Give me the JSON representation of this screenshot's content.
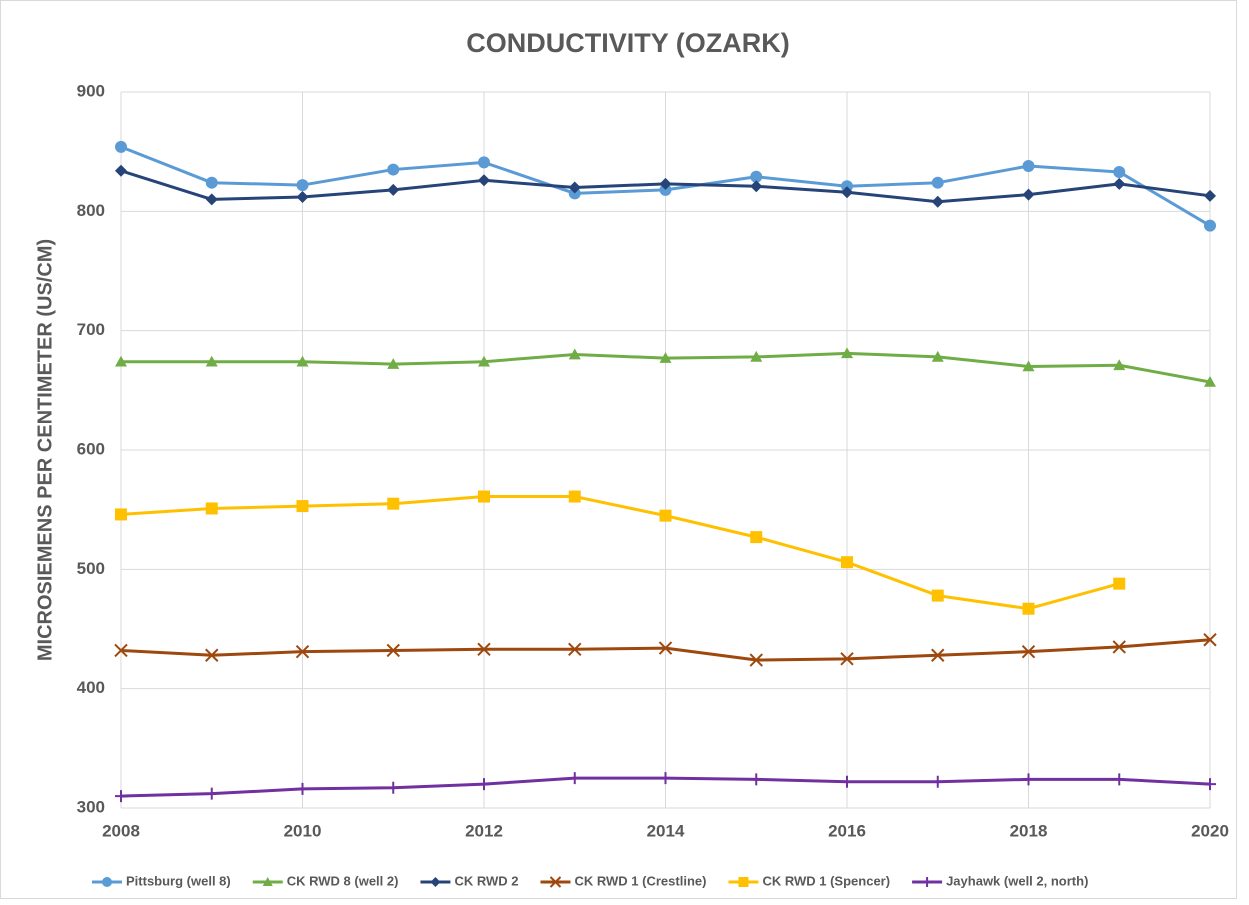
{
  "chart_data": {
    "type": "line",
    "title": "CONDUCTIVITY (OZARK)",
    "y_label": "MICROSIEMENS PER CENTIMETER (US/CM)",
    "x": [
      2008,
      2009,
      2010,
      2011,
      2012,
      2013,
      2014,
      2015,
      2016,
      2017,
      2018,
      2019,
      2020
    ],
    "xlim": [
      2008,
      2020
    ],
    "xticks": [
      2008,
      2010,
      2012,
      2014,
      2016,
      2018,
      2020
    ],
    "ylim": [
      300,
      900
    ],
    "yticks": [
      300,
      400,
      500,
      600,
      700,
      800,
      900
    ],
    "grid": true,
    "legend": "bottom",
    "series": [
      {
        "name": "Pittsburg (well 8)",
        "color": "#5b9bd5",
        "marker": "circle",
        "values": [
          854,
          824,
          822,
          835,
          841,
          815,
          818,
          829,
          821,
          824,
          838,
          833,
          788
        ]
      },
      {
        "name": "CK RWD 8 (well 2)",
        "color": "#70ad47",
        "marker": "triangle",
        "values": [
          674,
          674,
          674,
          672,
          674,
          680,
          677,
          678,
          681,
          678,
          670,
          671,
          657
        ]
      },
      {
        "name": "CK RWD 2",
        "color": "#264478",
        "marker": "diamond",
        "values": [
          834,
          810,
          812,
          818,
          826,
          820,
          823,
          821,
          816,
          808,
          814,
          823,
          813
        ]
      },
      {
        "name": "CK RWD 1 (Crestline)",
        "color": "#9e480e",
        "marker": "x",
        "values": [
          432,
          428,
          431,
          432,
          433,
          433,
          434,
          424,
          425,
          428,
          431,
          435,
          441
        ]
      },
      {
        "name": "CK RWD 1 (Spencer)",
        "color": "#ffc000",
        "marker": "square",
        "values": [
          546,
          551,
          553,
          555,
          561,
          561,
          545,
          527,
          506,
          478,
          467,
          488,
          null
        ]
      },
      {
        "name": "Jayhawk (well 2, north)",
        "color": "#7030a0",
        "marker": "plus",
        "values": [
          310,
          312,
          316,
          317,
          320,
          325,
          325,
          324,
          322,
          322,
          324,
          324,
          320
        ]
      }
    ]
  }
}
